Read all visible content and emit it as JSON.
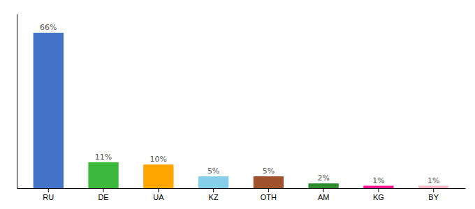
{
  "chart_data": {
    "type": "bar",
    "categories": [
      "RU",
      "DE",
      "UA",
      "KZ",
      "OTH",
      "AM",
      "KG",
      "BY"
    ],
    "values": [
      66,
      11,
      10,
      5,
      5,
      2,
      1,
      1
    ],
    "value_labels": [
      "66%",
      "11%",
      "10%",
      "5%",
      "5%",
      "2%",
      "1%",
      "1%"
    ],
    "colors": [
      "#4472c9",
      "#3cb83c",
      "#ffa500",
      "#87ceeb",
      "#a0522d",
      "#2e8b2e",
      "#ff1493",
      "#ffb6c1"
    ],
    "ylim": [
      0,
      74
    ],
    "data_labels": true,
    "tick_labels": "x"
  }
}
